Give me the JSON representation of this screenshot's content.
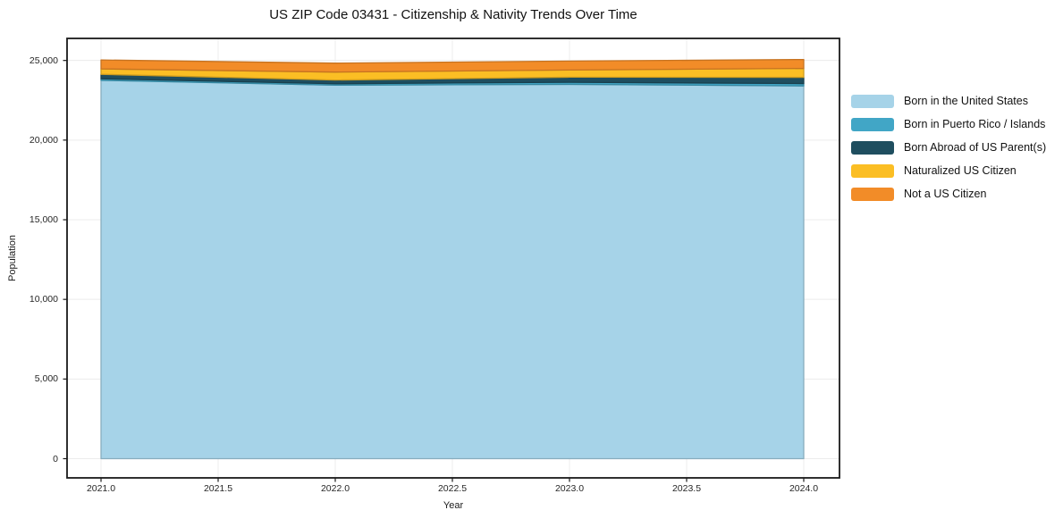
{
  "figure": {
    "title": "US ZIP Code 03431 - Citizenship & Nativity Trends Over Time",
    "x_axis": {
      "label": "Year",
      "ticks": [
        {
          "label": "2021.0",
          "value": 2021.0
        },
        {
          "label": "2021.5",
          "value": 2021.5
        },
        {
          "label": "2022.0",
          "value": 2022.0
        },
        {
          "label": "2022.5",
          "value": 2022.5
        },
        {
          "label": "2023.0",
          "value": 2023.0
        },
        {
          "label": "2023.5",
          "value": 2023.5
        },
        {
          "label": "2024.0",
          "value": 2024.0
        }
      ]
    },
    "y_axis": {
      "label": "Population",
      "ticks": [
        {
          "label": "0",
          "value": 0
        },
        {
          "label": "5,000",
          "value": 5000
        },
        {
          "label": "10,000",
          "value": 10000
        },
        {
          "label": "15,000",
          "value": 15000
        },
        {
          "label": "20,000",
          "value": 20000
        },
        {
          "label": "25,000",
          "value": 25000
        }
      ]
    },
    "colors": {
      "grid": "#ECECEC",
      "spine": "#1a1a1a",
      "tick_text": "#262626"
    },
    "legend_position": "outside-right"
  },
  "chart_data": {
    "type": "area",
    "stacked": true,
    "title": "US ZIP Code 03431 - Citizenship & Nativity Trends Over Time",
    "xlabel": "Year",
    "ylabel": "Population",
    "x": [
      2021,
      2022,
      2023,
      2024
    ],
    "series": [
      {
        "name": "Born in the United States",
        "color": "#A6D3E8",
        "values": [
          23750,
          23450,
          23500,
          23400
        ]
      },
      {
        "name": "Born in Puerto Rico / Islands",
        "color": "#41A6C6",
        "values": [
          100,
          90,
          130,
          150
        ]
      },
      {
        "name": "Born Abroad of US Parent(s)",
        "color": "#1F4E5F",
        "values": [
          280,
          230,
          320,
          390
        ]
      },
      {
        "name": "Naturalized US Citizen",
        "color": "#FBBE24",
        "values": [
          340,
          500,
          450,
          560
        ]
      },
      {
        "name": "Not a US Citizen",
        "color": "#F28C28",
        "values": [
          560,
          560,
          560,
          560
        ]
      }
    ],
    "totals": [
      25030,
      24830,
      24960,
      25060
    ],
    "xlim": [
      2020.85,
      2024.15
    ],
    "ylim": [
      -1200,
      26400
    ],
    "grid": true,
    "legend_position": "outside-right"
  }
}
